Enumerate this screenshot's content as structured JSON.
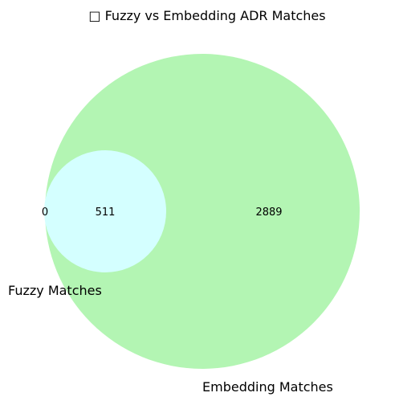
{
  "title": "□ Fuzzy vs Embedding ADR Matches",
  "sets": [
    {
      "name": "Fuzzy Matches",
      "color": "#d4ffff"
    },
    {
      "name": "Embedding Matches",
      "color": "#b3f5b3"
    }
  ],
  "regions": {
    "fuzzy_only": "0",
    "both": "511",
    "embedding_only": "2889"
  }
}
